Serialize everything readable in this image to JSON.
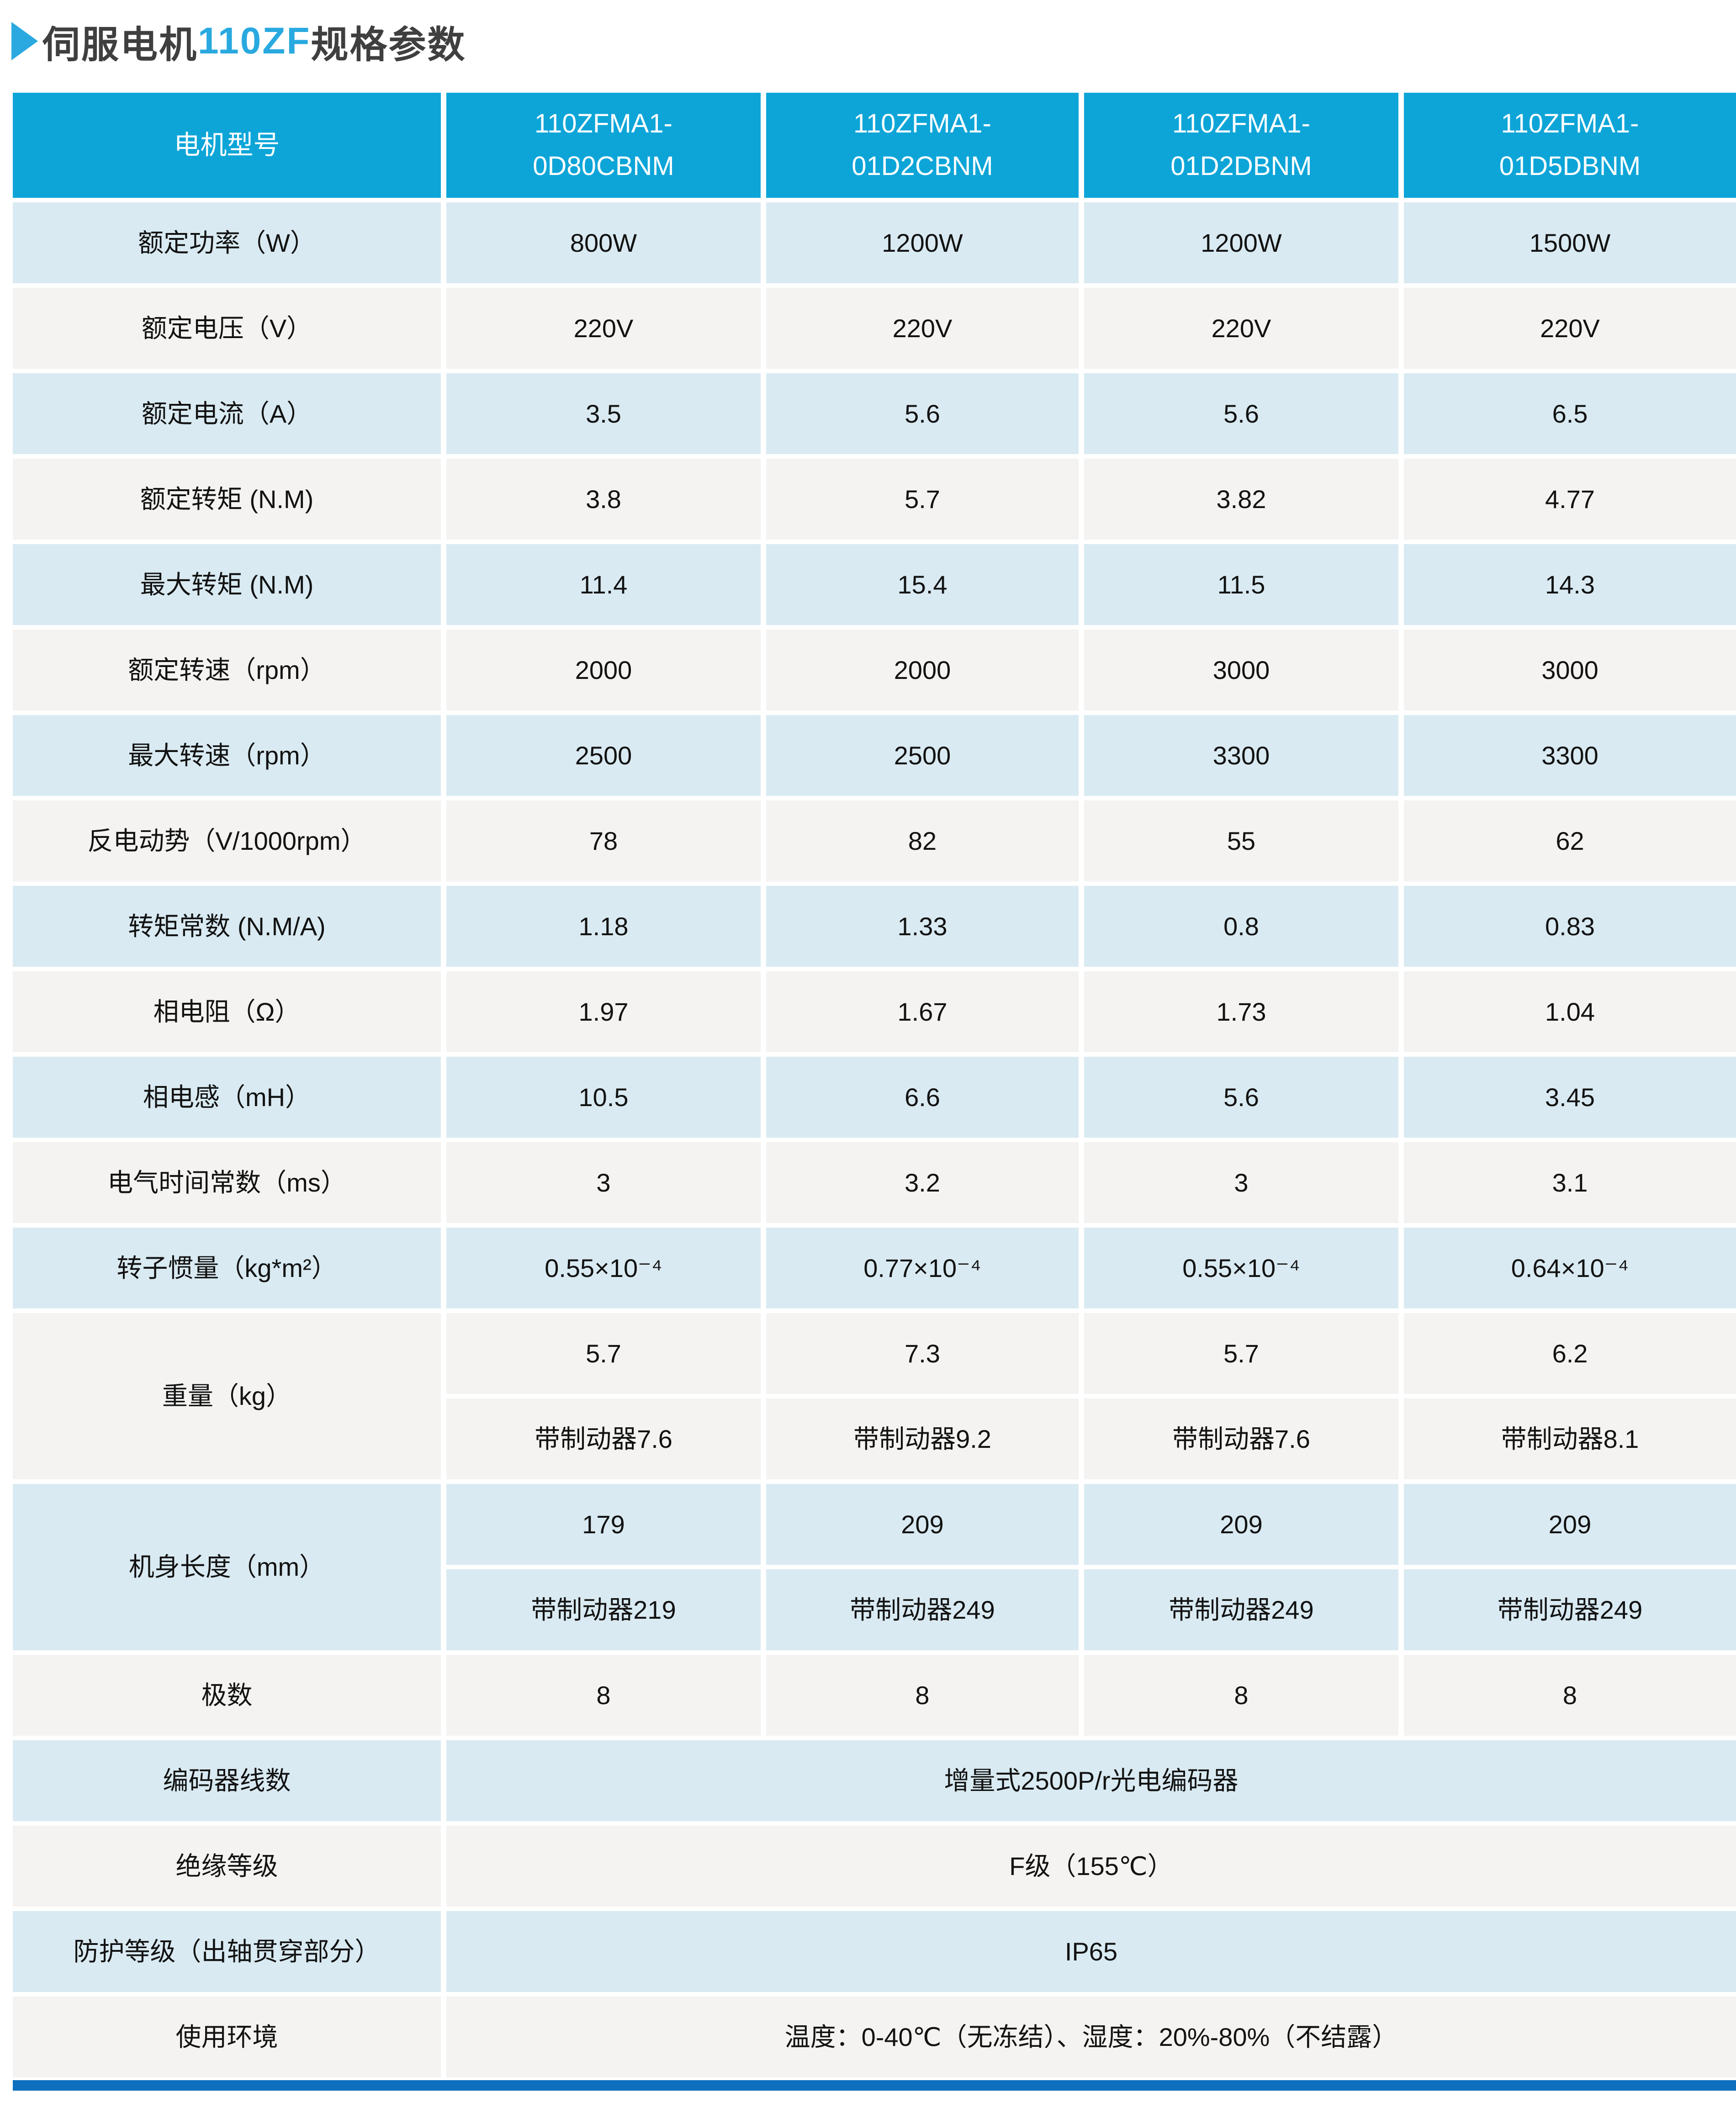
{
  "title": {
    "prefix": "伺服电机",
    "highlight": "110ZF",
    "suffix": "规格参数"
  },
  "colors": {
    "header_blue": "#0da5d8",
    "row_light_blue": "#d9eaf2",
    "row_off_white": "#f4f3f1",
    "title_highlight_blue": "#29a9df",
    "title_gray": "#3f3f3f",
    "bottom_bar_blue": "#0e6fbe"
  },
  "table": {
    "header": {
      "label": "电机型号",
      "models": [
        "110ZFMA1-0D80CBNM",
        "110ZFMA1-01D2CBNM",
        "110ZFMA1-01D2DBNM",
        "110ZFMA1-01D5DBNM"
      ]
    },
    "rows": [
      {
        "type": "single",
        "tint": "blue",
        "label": "额定功率（W）",
        "values": [
          "800W",
          "1200W",
          "1200W",
          "1500W"
        ]
      },
      {
        "type": "single",
        "tint": "white",
        "label": "额定电压（V）",
        "values": [
          "220V",
          "220V",
          "220V",
          "220V"
        ]
      },
      {
        "type": "single",
        "tint": "blue",
        "label": "额定电流（A）",
        "values": [
          "3.5",
          "5.6",
          "5.6",
          "6.5"
        ]
      },
      {
        "type": "single",
        "tint": "white",
        "label": "额定转矩 (N.M)",
        "values": [
          "3.8",
          "5.7",
          "3.82",
          "4.77"
        ]
      },
      {
        "type": "single",
        "tint": "blue",
        "label": "最大转矩 (N.M)",
        "values": [
          "11.4",
          "15.4",
          "11.5",
          "14.3"
        ]
      },
      {
        "type": "single",
        "tint": "white",
        "label": "额定转速（rpm）",
        "values": [
          "2000",
          "2000",
          "3000",
          "3000"
        ]
      },
      {
        "type": "single",
        "tint": "blue",
        "label": "最大转速（rpm）",
        "values": [
          "2500",
          "2500",
          "3300",
          "3300"
        ]
      },
      {
        "type": "single",
        "tint": "white",
        "label": "反电动势（V/1000rpm）",
        "values": [
          "78",
          "82",
          "55",
          "62"
        ]
      },
      {
        "type": "single",
        "tint": "blue",
        "label": "转矩常数 (N.M/A)",
        "values": [
          "1.18",
          "1.33",
          "0.8",
          "0.83"
        ]
      },
      {
        "type": "single",
        "tint": "white",
        "label": "相电阻（Ω）",
        "values": [
          "1.97",
          "1.67",
          "1.73",
          "1.04"
        ]
      },
      {
        "type": "single",
        "tint": "blue",
        "label": "相电感（mH）",
        "values": [
          "10.5",
          "6.6",
          "5.6",
          "3.45"
        ]
      },
      {
        "type": "single",
        "tint": "white",
        "label": "电气时间常数（ms）",
        "values": [
          "3",
          "3.2",
          "3",
          "3.1"
        ]
      },
      {
        "type": "single",
        "tint": "blue",
        "label": "转子惯量（kg*m²）",
        "values": [
          "0.55×10⁻⁴",
          "0.77×10⁻⁴",
          "0.55×10⁻⁴",
          "0.64×10⁻⁴"
        ]
      },
      {
        "type": "double",
        "tint": "white",
        "label": "重量（kg）",
        "values": [
          [
            "5.7",
            "7.3",
            "5.7",
            "6.2"
          ],
          [
            "带制动器7.6",
            "带制动器9.2",
            "带制动器7.6",
            "带制动器8.1"
          ]
        ]
      },
      {
        "type": "double",
        "tint": "blue",
        "label": "机身长度（mm）",
        "values": [
          [
            "179",
            "209",
            "209",
            "209"
          ],
          [
            "带制动器219",
            "带制动器249",
            "带制动器249",
            "带制动器249"
          ]
        ]
      },
      {
        "type": "single",
        "tint": "white",
        "label": "极数",
        "values": [
          "8",
          "8",
          "8",
          "8"
        ]
      },
      {
        "type": "span",
        "tint": "blue",
        "label": "编码器线数",
        "value": "增量式2500P/r光电编码器"
      },
      {
        "type": "span",
        "tint": "white",
        "label": "绝缘等级",
        "value": "F级（155℃）"
      },
      {
        "type": "span",
        "tint": "blue",
        "label": "防护等级（出轴贯穿部分）",
        "value": "IP65"
      },
      {
        "type": "span",
        "tint": "white",
        "label": "使用环境",
        "value": "温度：0-40℃（无冻结）、湿度：20%-80%（不结露）"
      }
    ]
  }
}
